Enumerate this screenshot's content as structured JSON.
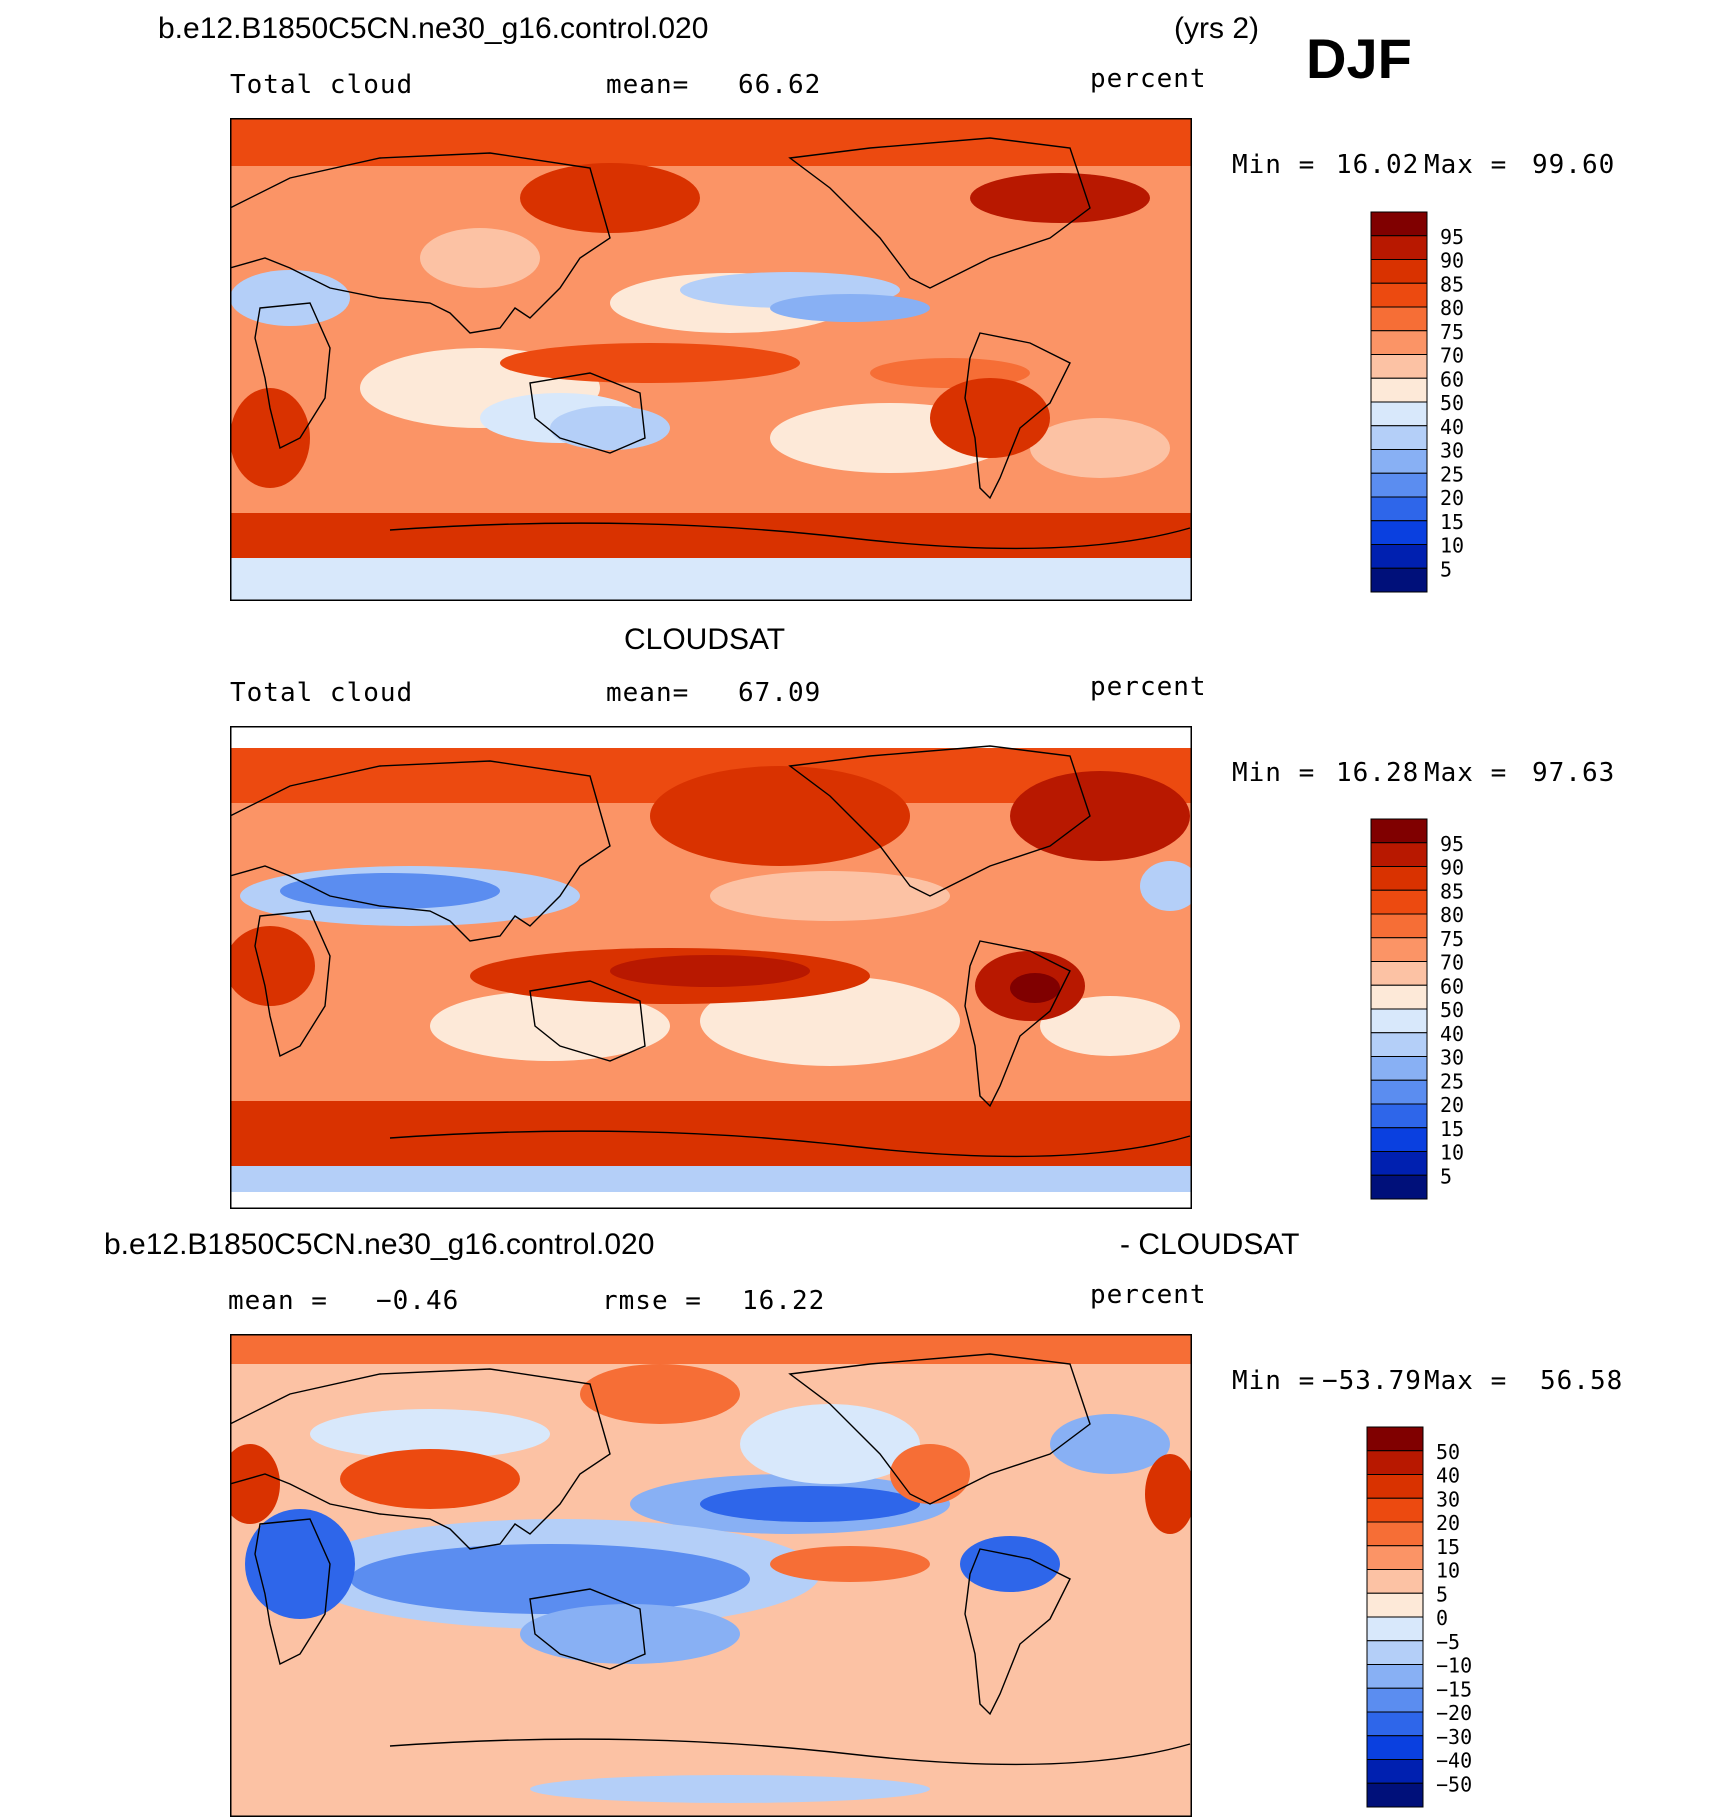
{
  "figure": {
    "season": "DJF",
    "case_name": "b.e12.B1850C5CN.ne30_g16.control.020",
    "years_label": "(yrs 2)"
  },
  "panels": [
    {
      "id": "model",
      "header": "b.e12.B1850C5CN.ne30_g16.control.020",
      "left_label": "Total cloud",
      "mean_label": "mean=",
      "mean_value": "66.62",
      "units": "percent",
      "min_label": "Min =",
      "min_value": "16.02",
      "max_label": "Max =",
      "max_value": "99.60"
    },
    {
      "id": "obs",
      "header": "CLOUDSAT",
      "left_label": "Total cloud",
      "mean_label": "mean=",
      "mean_value": "67.09",
      "units": "percent",
      "min_label": "Min =",
      "min_value": "16.28",
      "max_label": "Max =",
      "max_value": "97.63"
    },
    {
      "id": "diff",
      "header_left": "b.e12.B1850C5CN.ne30_g16.control.020",
      "header_right": "- CLOUDSAT",
      "mean_label": "mean =",
      "mean_value": "−0.46",
      "rmse_label": "rmse =",
      "rmse_value": "16.22",
      "units": "percent",
      "min_label": "Min =",
      "min_value": "−53.79",
      "max_label": "Max =",
      "max_value": "56.58"
    }
  ],
  "colorbars": {
    "abs": {
      "labels": [
        "95",
        "90",
        "85",
        "80",
        "75",
        "70",
        "60",
        "50",
        "40",
        "30",
        "25",
        "20",
        "15",
        "10",
        "5"
      ],
      "colors": [
        "#800000",
        "#b81800",
        "#d93200",
        "#ec4a10",
        "#f66e36",
        "#fb9466",
        "#fcc2a4",
        "#fde9d8",
        "#d8e8fb",
        "#b4cff8",
        "#88b0f4",
        "#5b8df0",
        "#2e66ea",
        "#0a40e0",
        "#0020b0",
        "#00107a"
      ]
    },
    "diff": {
      "labels": [
        "50",
        "40",
        "30",
        "20",
        "15",
        "10",
        "5",
        "0",
        "−5",
        "−10",
        "−15",
        "−20",
        "−30",
        "−40",
        "−50"
      ],
      "colors": [
        "#800000",
        "#b81800",
        "#d93200",
        "#ec4a10",
        "#f66e36",
        "#fb9466",
        "#fcc2a4",
        "#fde9d8",
        "#d8e8fb",
        "#b4cff8",
        "#88b0f4",
        "#5b8df0",
        "#2e66ea",
        "#0a40e0",
        "#0020b0",
        "#00107a"
      ]
    }
  },
  "chart_data": [
    {
      "type": "heatmap",
      "title": "b.e12.B1850C5CN.ne30_g16.control.020",
      "subtitle": "Total cloud",
      "variable": "Total cloud",
      "units": "percent",
      "mean": 66.62,
      "min": 16.02,
      "max": 99.6,
      "color_levels": [
        5,
        10,
        15,
        20,
        25,
        30,
        40,
        50,
        60,
        70,
        75,
        80,
        85,
        90,
        95
      ],
      "projection": "global cylindrical equidistant, Pacific-centered"
    },
    {
      "type": "heatmap",
      "title": "CLOUDSAT",
      "subtitle": "Total cloud",
      "variable": "Total cloud",
      "units": "percent",
      "mean": 67.09,
      "min": 16.28,
      "max": 97.63,
      "color_levels": [
        5,
        10,
        15,
        20,
        25,
        30,
        40,
        50,
        60,
        70,
        75,
        80,
        85,
        90,
        95
      ],
      "projection": "global cylindrical equidistant, Pacific-centered"
    },
    {
      "type": "heatmap",
      "title": "b.e12.B1850C5CN.ne30_g16.control.020 - CLOUDSAT",
      "units": "percent",
      "mean": -0.46,
      "rmse": 16.22,
      "min": -53.79,
      "max": 56.58,
      "color_levels": [
        -50,
        -40,
        -30,
        -20,
        -15,
        -10,
        -5,
        0,
        5,
        10,
        15,
        20,
        30,
        40,
        50
      ],
      "projection": "global cylindrical equidistant, Pacific-centered"
    }
  ]
}
